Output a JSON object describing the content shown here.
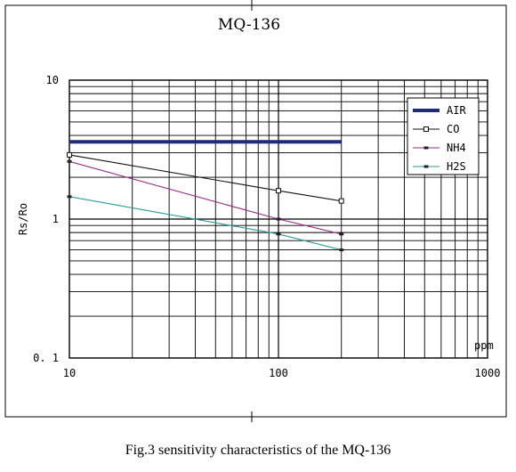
{
  "chart_data": {
    "type": "line",
    "title": "MQ-136",
    "xlabel": "ppm",
    "ylabel": "Rs/Ro",
    "x_scale": "log",
    "y_scale": "log",
    "xlim": [
      10,
      1000
    ],
    "ylim": [
      0.1,
      10
    ],
    "grid": true,
    "legend_position": "top-right",
    "x_tick_labels": [
      {
        "value": 10,
        "label": "10"
      },
      {
        "value": 100,
        "label": "100"
      },
      {
        "value": 1000,
        "label": "1000"
      }
    ],
    "y_tick_labels": [
      {
        "value": 10,
        "label": "10"
      },
      {
        "value": 1,
        "label": "1"
      },
      {
        "value": 0.1,
        "label": "0. 1"
      }
    ],
    "series": [
      {
        "name": "AIR",
        "color": "#1f2a7a",
        "marker": "none",
        "points": [
          [
            10,
            3.6
          ],
          [
            200,
            3.6
          ]
        ]
      },
      {
        "name": "CO",
        "color": "#111111",
        "marker": "square",
        "points": [
          [
            10,
            2.9
          ],
          [
            100,
            1.6
          ],
          [
            200,
            1.35
          ]
        ]
      },
      {
        "name": "NH4",
        "color": "#9a2a8a",
        "marker": "dash",
        "points": [
          [
            10,
            2.6
          ],
          [
            100,
            1.0
          ],
          [
            200,
            0.78
          ]
        ]
      },
      {
        "name": "H2S",
        "color": "#2a9a9a",
        "marker": "dash",
        "points": [
          [
            10,
            1.45
          ],
          [
            100,
            0.78
          ],
          [
            200,
            0.6
          ]
        ]
      }
    ]
  },
  "caption": "Fig.3 sensitivity characteristics of the MQ-136"
}
